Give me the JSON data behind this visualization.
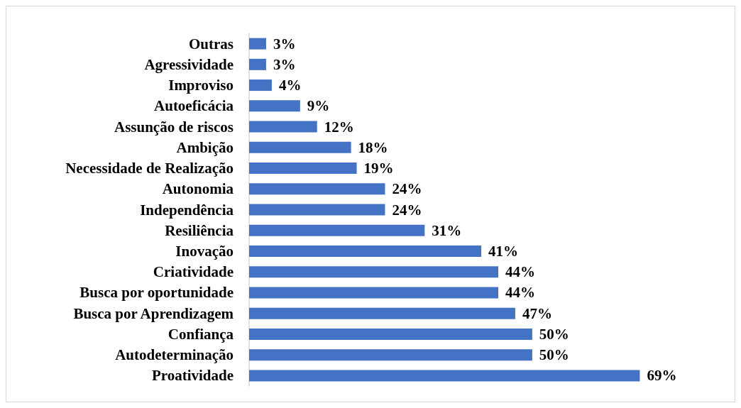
{
  "chart_data": {
    "type": "bar",
    "orientation": "horizontal",
    "color": "#4472c4",
    "categories": [
      "Outras",
      "Agressividade",
      "Improviso",
      "Autoeficácia",
      "Assunção de riscos",
      "Ambição",
      "Necessidade de Realização",
      "Autonomia",
      "Independência",
      "Resiliência",
      "Inovação",
      "Criatividade",
      "Busca por oportunidade",
      "Busca por Aprendizagem",
      "Confiança",
      "Autodeterminação",
      "Proatividade"
    ],
    "values": [
      3,
      3,
      4,
      9,
      12,
      18,
      19,
      24,
      24,
      31,
      41,
      44,
      44,
      47,
      50,
      50,
      69
    ],
    "value_labels": [
      "3%",
      "3%",
      "4%",
      "9%",
      "12%",
      "18%",
      "19%",
      "24%",
      "24%",
      "31%",
      "41%",
      "44%",
      "44%",
      "47%",
      "50%",
      "50%",
      "69%"
    ]
  }
}
